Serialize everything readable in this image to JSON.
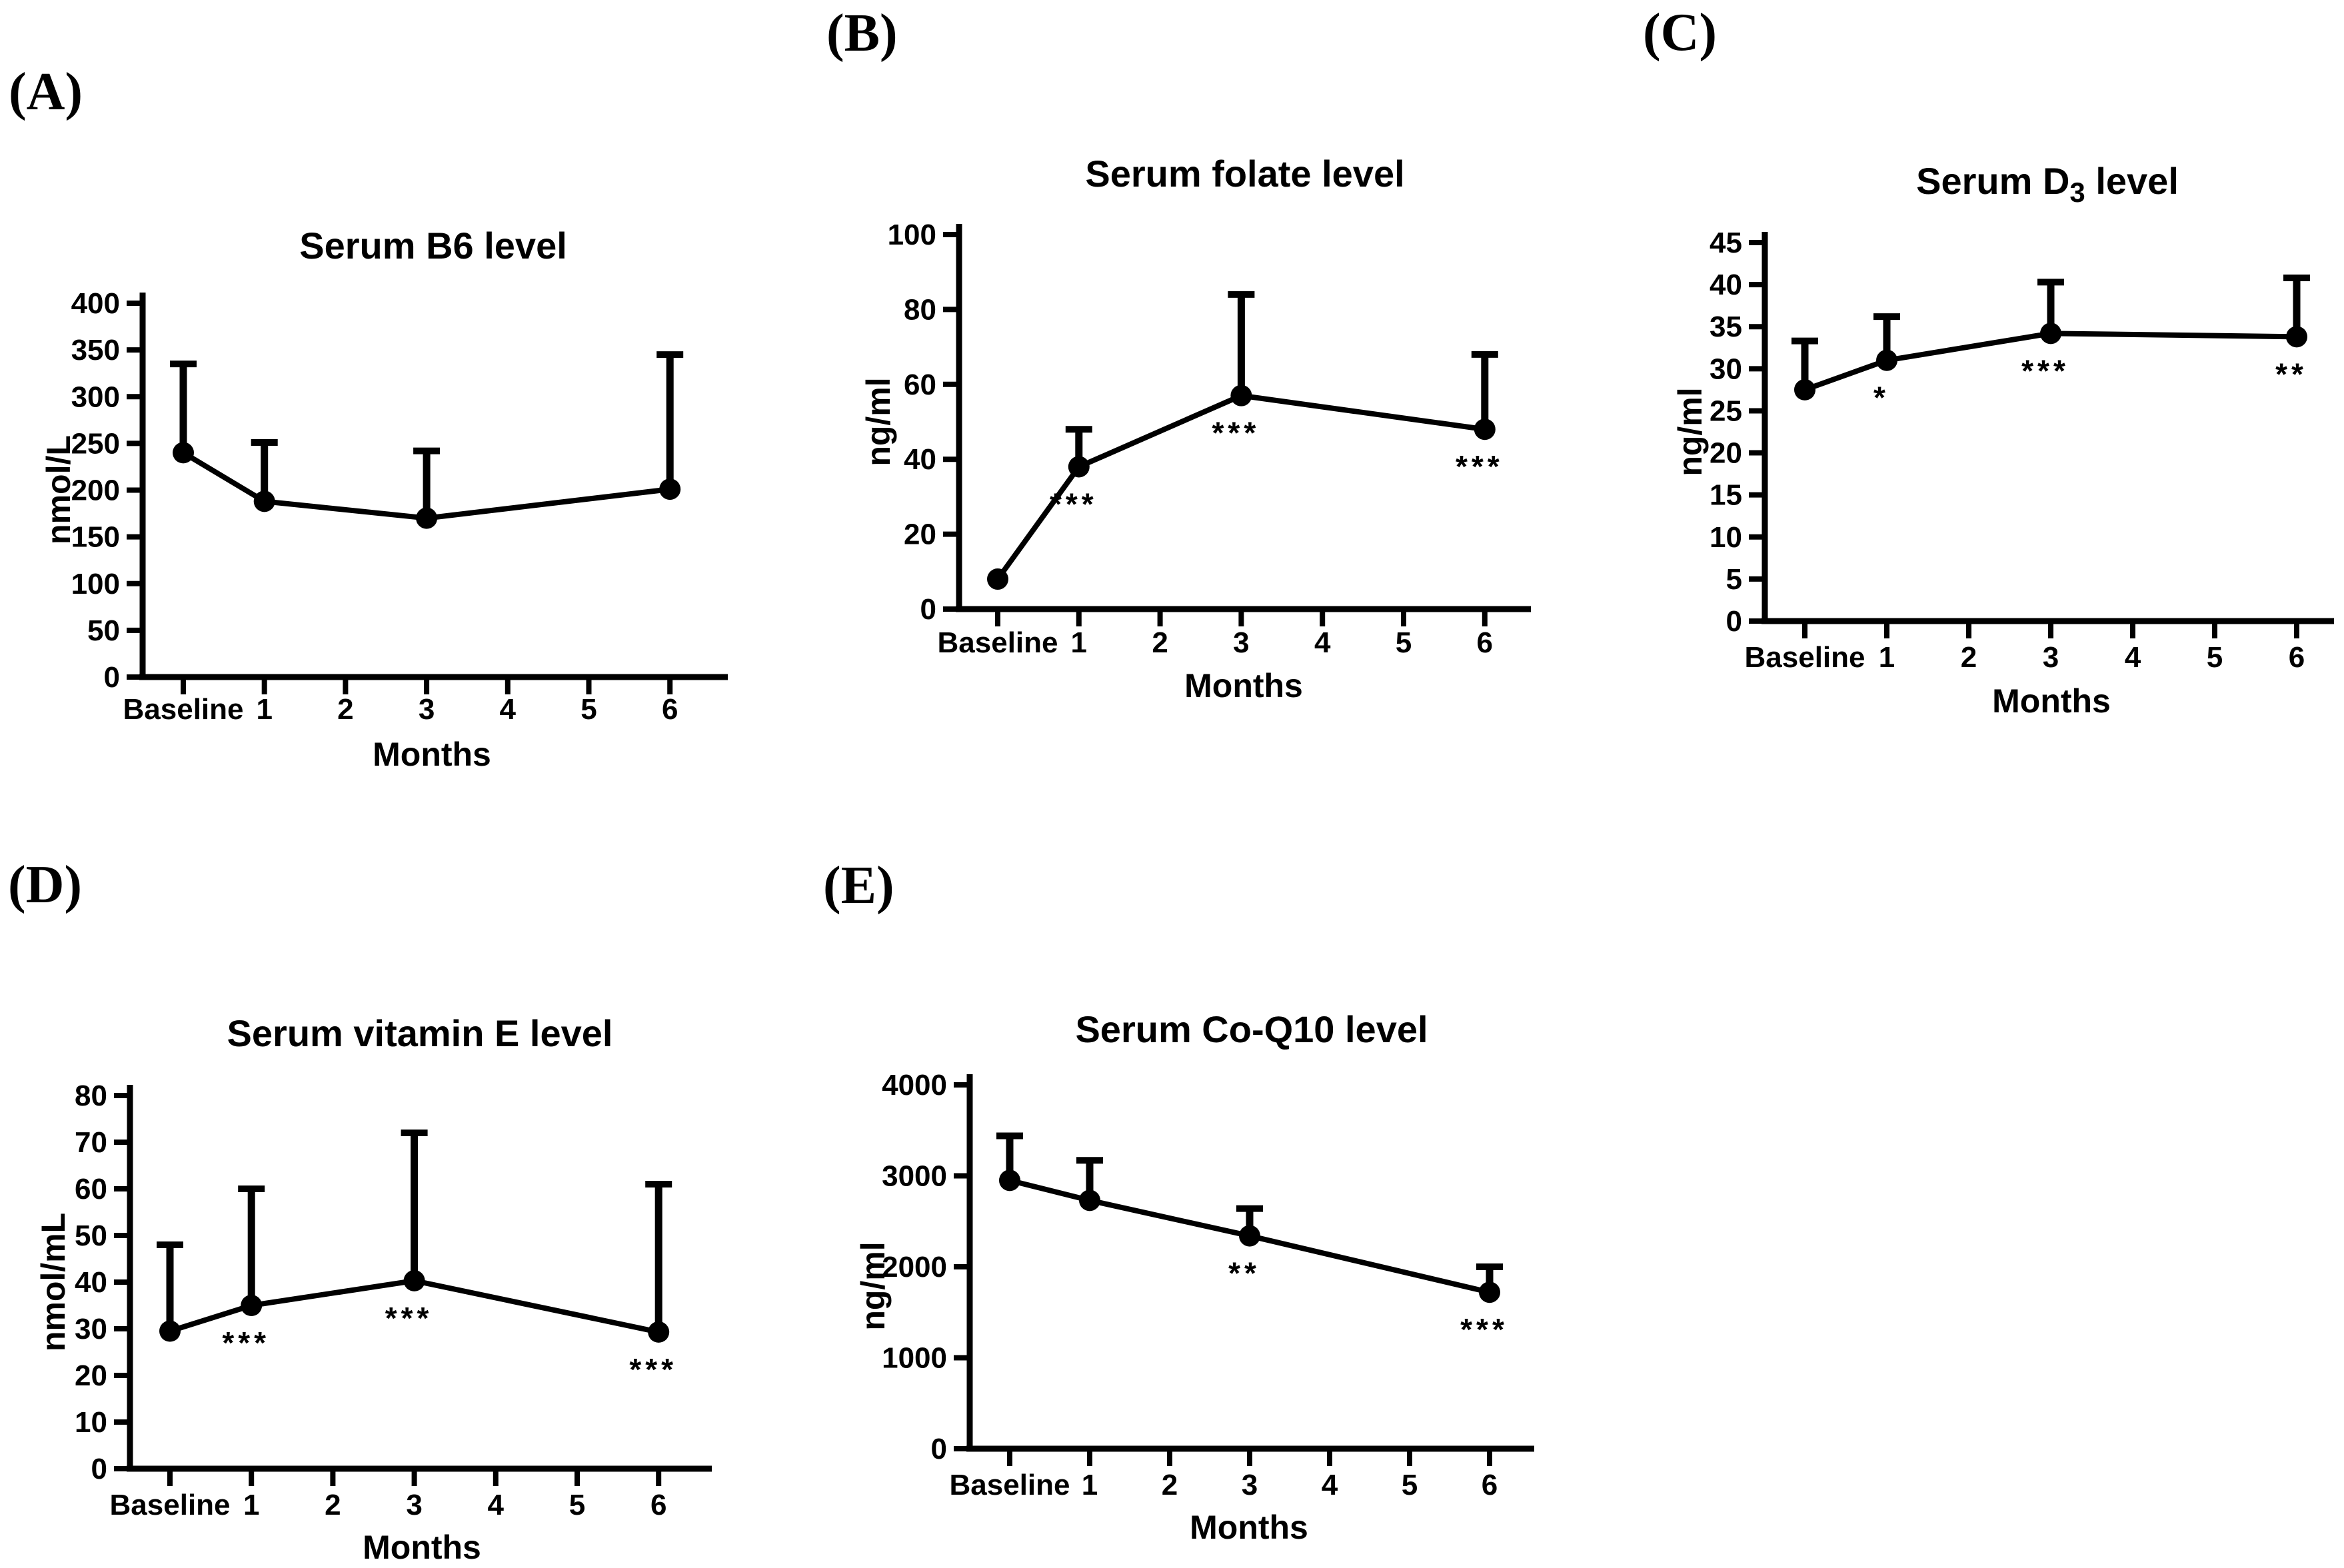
{
  "figure": {
    "background": "#ffffff",
    "ink": "#000000",
    "x_axis_label": "Months",
    "significance_legend": {
      "single": "*",
      "double": "**",
      "triple": "***"
    }
  },
  "chart_data": [
    {
      "id": "A",
      "type": "line",
      "panel_label": "(A)",
      "title_parts": {
        "pre": "Serum B6 level",
        "sub": "",
        "post": ""
      },
      "title": "Serum B6 level",
      "ylabel": "nmol/L",
      "xlabel": "Months",
      "x_categories": [
        "Baseline",
        "1",
        "2",
        "3",
        "4",
        "5",
        "6"
      ],
      "ylim": [
        0,
        400
      ],
      "ytick_step": 50,
      "grid": false,
      "points": [
        {
          "x": "Baseline",
          "mean": 240,
          "err_top": 335,
          "sig": ""
        },
        {
          "x": "1",
          "mean": 188,
          "err_top": 251,
          "sig": ""
        },
        {
          "x": "3",
          "mean": 170,
          "err_top": 242,
          "sig": ""
        },
        {
          "x": "6",
          "mean": 201,
          "err_top": 345,
          "sig": ""
        }
      ]
    },
    {
      "id": "B",
      "type": "line",
      "panel_label": "(B)",
      "title_parts": {
        "pre": "Serum folate level",
        "sub": "",
        "post": ""
      },
      "title": "Serum folate level",
      "ylabel": "ng/ml",
      "xlabel": "Months",
      "x_categories": [
        "Baseline",
        "1",
        "2",
        "3",
        "4",
        "5",
        "6"
      ],
      "ylim": [
        0,
        100
      ],
      "ytick_step": 20,
      "grid": false,
      "points": [
        {
          "x": "Baseline",
          "mean": 8,
          "err_top": null,
          "sig": ""
        },
        {
          "x": "1",
          "mean": 38,
          "err_top": 48,
          "sig": "***"
        },
        {
          "x": "3",
          "mean": 57,
          "err_top": 84,
          "sig": "***"
        },
        {
          "x": "6",
          "mean": 48,
          "err_top": 68,
          "sig": "***"
        }
      ]
    },
    {
      "id": "C",
      "type": "line",
      "panel_label": "(C)",
      "title_parts": {
        "pre": "Serum D",
        "sub": "3",
        "post": " level"
      },
      "title": "Serum D3 level",
      "ylabel": "ng/ml",
      "xlabel": "Months",
      "x_categories": [
        "Baseline",
        "1",
        "2",
        "3",
        "4",
        "5",
        "6"
      ],
      "ylim": [
        0,
        45
      ],
      "ytick_step": 5,
      "grid": false,
      "points": [
        {
          "x": "Baseline",
          "mean": 27.5,
          "err_top": 33.3,
          "sig": ""
        },
        {
          "x": "1",
          "mean": 31,
          "err_top": 36.2,
          "sig": "*"
        },
        {
          "x": "3",
          "mean": 34.2,
          "err_top": 40.3,
          "sig": "***"
        },
        {
          "x": "6",
          "mean": 33.8,
          "err_top": 40.8,
          "sig": "**"
        }
      ]
    },
    {
      "id": "D",
      "type": "line",
      "panel_label": "(D)",
      "title_parts": {
        "pre": "Serum vitamin E level",
        "sub": "",
        "post": ""
      },
      "title": "Serum vitamin E level",
      "ylabel": "nmol/mL",
      "xlabel": "Months",
      "x_categories": [
        "Baseline",
        "1",
        "2",
        "3",
        "4",
        "5",
        "6"
      ],
      "ylim": [
        0,
        80
      ],
      "ytick_step": 10,
      "grid": false,
      "points": [
        {
          "x": "Baseline",
          "mean": 29.5,
          "err_top": 48,
          "sig": ""
        },
        {
          "x": "1",
          "mean": 35,
          "err_top": 60,
          "sig": "***"
        },
        {
          "x": "3",
          "mean": 40.3,
          "err_top": 72,
          "sig": "***"
        },
        {
          "x": "6",
          "mean": 29.3,
          "err_top": 61,
          "sig": "***"
        }
      ]
    },
    {
      "id": "E",
      "type": "line",
      "panel_label": "(E)",
      "title_parts": {
        "pre": "Serum Co-Q10 level",
        "sub": "",
        "post": ""
      },
      "title": "Serum Co-Q10 level",
      "ylabel": "ng/ml",
      "xlabel": "Months",
      "x_categories": [
        "Baseline",
        "1",
        "2",
        "3",
        "4",
        "5",
        "6"
      ],
      "ylim": [
        0,
        4000
      ],
      "ytick_step": 1000,
      "grid": false,
      "points": [
        {
          "x": "Baseline",
          "mean": 2950,
          "err_top": 3440,
          "sig": ""
        },
        {
          "x": "1",
          "mean": 2730,
          "err_top": 3170,
          "sig": ""
        },
        {
          "x": "3",
          "mean": 2340,
          "err_top": 2640,
          "sig": "**"
        },
        {
          "x": "6",
          "mean": 1720,
          "err_top": 2000,
          "sig": "***"
        }
      ]
    }
  ]
}
